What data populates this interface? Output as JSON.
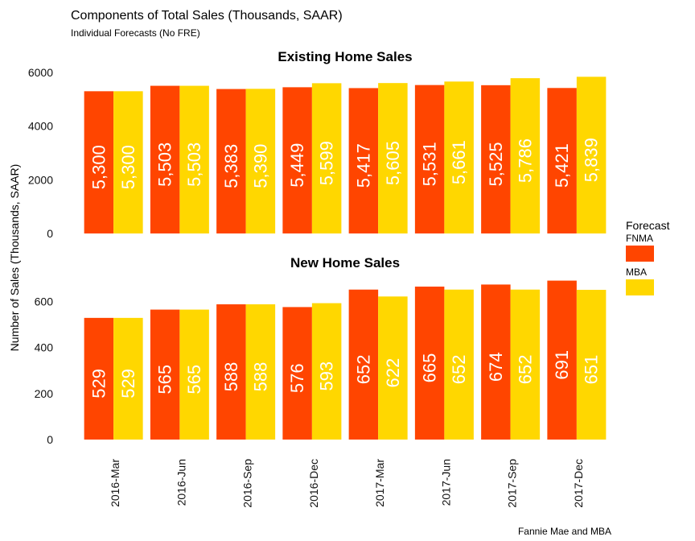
{
  "title": "Components of Total Sales (Thousands, SAAR)",
  "subtitle": "Individual Forecasts (No FRE)",
  "caption": "Fannie Mae and MBA",
  "chart_data": {
    "type": "bar",
    "ylabel": "Number of Sales (Thousands, SAAR)",
    "categories": [
      "2016-Mar",
      "2016-Jun",
      "2016-Sep",
      "2016-Dec",
      "2017-Mar",
      "2017-Jun",
      "2017-Sep",
      "2017-Dec"
    ],
    "legend": {
      "title": "Forecast",
      "position": "right",
      "items": [
        {
          "name": "FNMA",
          "color": "#FF4500"
        },
        {
          "name": "MBA",
          "color": "#FFD700"
        }
      ]
    },
    "panels": [
      {
        "title": "Existing Home Sales",
        "ylim": [
          0,
          6000
        ],
        "yticks": [
          0,
          2000,
          4000,
          6000
        ],
        "ytick_labels": [
          "0",
          "2000",
          "4000",
          "6000"
        ],
        "series": [
          {
            "name": "FNMA",
            "values": [
              5300,
              5503,
              5383,
              5449,
              5417,
              5531,
              5525,
              5421
            ],
            "labels": [
              "5,300",
              "5,503",
              "5,383",
              "5,449",
              "5,417",
              "5,531",
              "5,525",
              "5,421"
            ]
          },
          {
            "name": "MBA",
            "values": [
              5300,
              5503,
              5390,
              5599,
              5605,
              5661,
              5786,
              5839
            ],
            "labels": [
              "5,300",
              "5,503",
              "5,390",
              "5,599",
              "5,605",
              "5,661",
              "5,786",
              "5,839"
            ]
          }
        ]
      },
      {
        "title": "New Home Sales",
        "ylim": [
          0,
          700
        ],
        "yticks": [
          0,
          200,
          400,
          600
        ],
        "ytick_labels": [
          "0",
          "200",
          "400",
          "600"
        ],
        "series": [
          {
            "name": "FNMA",
            "values": [
              529,
              565,
              588,
              576,
              652,
              665,
              674,
              691
            ],
            "labels": [
              "529",
              "565",
              "588",
              "576",
              "652",
              "665",
              "674",
              "691"
            ]
          },
          {
            "name": "MBA",
            "values": [
              529,
              565,
              588,
              593,
              622,
              652,
              652,
              651
            ],
            "labels": [
              "529",
              "565",
              "588",
              "593",
              "622",
              "652",
              "652",
              "651"
            ]
          }
        ]
      }
    ]
  }
}
